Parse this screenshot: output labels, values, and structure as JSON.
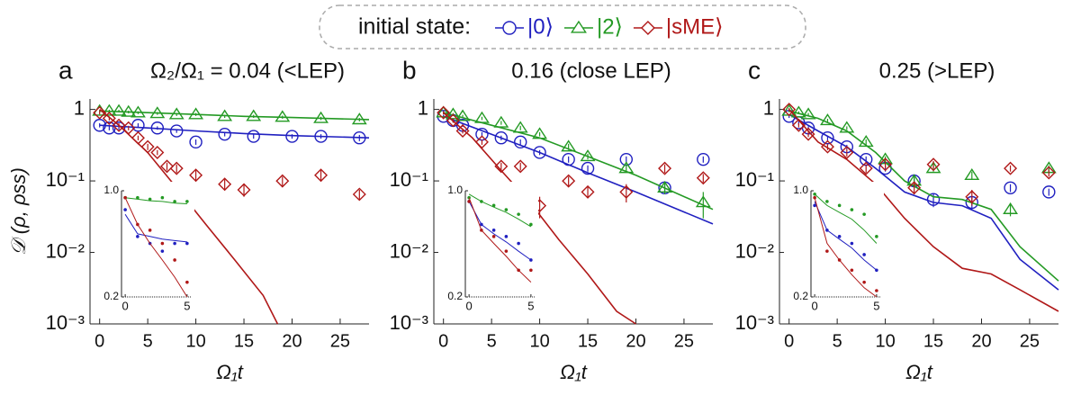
{
  "legend": {
    "title": "initial state:",
    "entries": [
      {
        "name": "|0⟩",
        "color": "#2020c0",
        "marker": "circle"
      },
      {
        "name": "|2⟩",
        "color": "#249a24",
        "marker": "triangle"
      },
      {
        "name": "|sME⟩",
        "color": "#b01818",
        "marker": "diamond"
      }
    ]
  },
  "chart_data": [
    {
      "type": "scatter",
      "panel_label": "a",
      "title": "Ω₂/Ω₁ = 0.04 (<LEP)",
      "y_label": "𝒟 (ρ, ρss)",
      "x_label": "Ω₁t",
      "log_y": true,
      "xlim": [
        -1,
        28
      ],
      "ylim": [
        0.001,
        1.4
      ],
      "xticks": [
        0,
        5,
        10,
        15,
        20,
        25
      ],
      "yticks": [
        1,
        {
          "value": 0.1,
          "label": "10⁻¹"
        },
        {
          "value": 0.01,
          "label": "10⁻²"
        },
        {
          "value": 0.001,
          "label": "10⁻³"
        }
      ],
      "series": [
        {
          "color": "#2020c0",
          "marker": "circle",
          "x": [
            0,
            1,
            2,
            4,
            6,
            8,
            10,
            13,
            16,
            20,
            23,
            27
          ],
          "values": [
            0.6,
            0.55,
            0.55,
            0.6,
            0.55,
            0.5,
            0.35,
            0.45,
            0.42,
            0.42,
            0.42,
            0.4
          ],
          "errors": [
            0.04,
            0.04,
            0.03,
            0.04,
            0.03,
            0.03,
            0.03,
            0.03,
            0.03,
            0.03,
            0.03,
            0.04
          ],
          "fit_x": [
            0,
            5,
            10,
            15,
            20,
            28
          ],
          "fit_values": [
            0.6,
            0.55,
            0.5,
            0.46,
            0.43,
            0.4
          ]
        },
        {
          "color": "#249a24",
          "marker": "triangle",
          "x": [
            0,
            1,
            2,
            3,
            4,
            6,
            8,
            10,
            13,
            16,
            19,
            23,
            27
          ],
          "values": [
            0.95,
            0.95,
            0.95,
            0.92,
            0.9,
            0.88,
            0.85,
            0.85,
            0.8,
            0.8,
            0.78,
            0.75,
            0.72
          ],
          "errors": [
            0.04,
            0.04,
            0.04,
            0.04,
            0.04,
            0.04,
            0.04,
            0.04,
            0.04,
            0.04,
            0.04,
            0.04,
            0.04
          ],
          "fit_x": [
            0,
            5,
            10,
            15,
            20,
            28
          ],
          "fit_values": [
            0.95,
            0.9,
            0.85,
            0.8,
            0.77,
            0.72
          ]
        },
        {
          "color": "#b01818",
          "marker": "diamond",
          "x": [
            0,
            1,
            2,
            3,
            4,
            5,
            6,
            7,
            8,
            10,
            13,
            15,
            19,
            23,
            27
          ],
          "values": [
            0.9,
            0.75,
            0.6,
            0.55,
            0.4,
            0.3,
            0.25,
            0.16,
            0.15,
            0.12,
            0.09,
            0.075,
            0.1,
            0.12,
            0.065
          ],
          "errors": [
            0.05,
            0.05,
            0.04,
            0.04,
            0.03,
            0.03,
            0.02,
            0.02,
            0.02,
            0.02,
            0.015,
            0.015,
            0.015,
            0.02,
            0.01
          ],
          "fit_x": [
            0,
            2,
            5,
            8,
            11,
            14,
            17,
            18.5
          ],
          "fit_values": [
            1,
            0.6,
            0.25,
            0.08,
            0.025,
            0.008,
            0.0025,
            0.001
          ]
        }
      ],
      "inset": {
        "xlim": [
          -0.3,
          5.3
        ],
        "ylim": [
          0.2,
          1.0
        ],
        "xticks": [
          0,
          5
        ],
        "yticks": [
          {
            "value": 1,
            "label": "1.0"
          },
          0.2
        ],
        "series": [
          {
            "color": "#2020c0",
            "x": [
              0,
              1,
              2,
              3,
              4,
              5
            ],
            "values": [
              0.75,
              0.5,
              0.45,
              0.4,
              0.45,
              0.45
            ],
            "fit_x": [
              0,
              1,
              2,
              3,
              4,
              5
            ],
            "fit_values": [
              0.7,
              0.52,
              0.5,
              0.48,
              0.47,
              0.46
            ]
          },
          {
            "color": "#249a24",
            "x": [
              0,
              1,
              2,
              3,
              4,
              5
            ],
            "values": [
              0.9,
              0.9,
              0.88,
              0.9,
              0.85,
              0.85
            ],
            "fit_x": [
              0,
              1,
              2,
              3,
              4,
              5
            ],
            "fit_values": [
              0.9,
              0.88,
              0.86,
              0.85,
              0.83,
              0.82
            ]
          },
          {
            "color": "#b01818",
            "x": [
              0,
              1,
              2,
              3,
              4,
              5
            ],
            "values": [
              0.9,
              0.6,
              0.55,
              0.45,
              0.35,
              0.25
            ],
            "fit_x": [
              0,
              1,
              2,
              3,
              4,
              5
            ],
            "fit_values": [
              0.9,
              0.6,
              0.45,
              0.35,
              0.27,
              0.2
            ]
          }
        ]
      }
    },
    {
      "type": "scatter",
      "panel_label": "b",
      "title": "0.16 (close LEP)",
      "x_label": "Ω₁t",
      "log_y": true,
      "xlim": [
        -1,
        28
      ],
      "ylim": [
        0.001,
        1.4
      ],
      "xticks": [
        0,
        5,
        10,
        15,
        20,
        25
      ],
      "yticks": [
        1,
        {
          "value": 0.1,
          "label": "10⁻¹"
        },
        {
          "value": 0.01,
          "label": "10⁻²"
        },
        {
          "value": 0.001,
          "label": "10⁻³"
        }
      ],
      "series": [
        {
          "color": "#2020c0",
          "marker": "circle",
          "x": [
            0,
            1,
            2,
            4,
            6,
            8,
            10,
            13,
            15,
            19,
            23,
            27
          ],
          "values": [
            0.8,
            0.7,
            0.6,
            0.45,
            0.4,
            0.35,
            0.25,
            0.2,
            0.15,
            0.2,
            0.08,
            0.2
          ],
          "errors": [
            0.04,
            0.04,
            0.03,
            0.03,
            0.03,
            0.03,
            0.02,
            0.02,
            0.015,
            0.02,
            0.01,
            0.02
          ],
          "fit_x": [
            0,
            5,
            10,
            15,
            20,
            28
          ],
          "fit_values": [
            0.8,
            0.45,
            0.25,
            0.13,
            0.07,
            0.025
          ]
        },
        {
          "color": "#249a24",
          "marker": "triangle",
          "x": [
            0,
            1,
            2,
            4,
            6,
            8,
            10,
            13,
            15,
            19,
            23,
            27
          ],
          "values": [
            0.9,
            0.85,
            0.8,
            0.75,
            0.65,
            0.55,
            0.45,
            0.3,
            0.22,
            0.15,
            0.08,
            0.05
          ],
          "errors": [
            0.04,
            0.04,
            0.04,
            0.04,
            0.04,
            0.04,
            0.03,
            0.03,
            0.02,
            0.02,
            0.015,
            0.02
          ],
          "fit_x": [
            0,
            5,
            10,
            15,
            20,
            28
          ],
          "fit_values": [
            0.9,
            0.6,
            0.4,
            0.22,
            0.12,
            0.04
          ]
        },
        {
          "color": "#b01818",
          "marker": "diamond",
          "x": [
            0,
            1,
            2,
            4,
            6,
            8,
            10,
            13,
            15,
            19,
            23,
            27
          ],
          "values": [
            0.9,
            0.7,
            0.5,
            0.35,
            0.16,
            0.16,
            0.045,
            0.1,
            0.07,
            0.07,
            0.15,
            0.11
          ],
          "errors": [
            0.05,
            0.05,
            0.04,
            0.03,
            0.02,
            0.02,
            0.015,
            0.015,
            0.012,
            0.02,
            0.02,
            0.015
          ],
          "fit_x": [
            0,
            3,
            6,
            9,
            12,
            15,
            18,
            20
          ],
          "fit_values": [
            0.9,
            0.4,
            0.14,
            0.05,
            0.015,
            0.005,
            0.0015,
            0.001
          ]
        }
      ],
      "inset": {
        "xlim": [
          -0.3,
          5.3
        ],
        "ylim": [
          0.2,
          1.0
        ],
        "xticks": [
          0,
          5
        ],
        "yticks": [
          {
            "value": 1,
            "label": "1.0"
          },
          0.2
        ],
        "series": [
          {
            "color": "#2020c0",
            "x": [
              0,
              1,
              2,
              3,
              4,
              5
            ],
            "values": [
              0.85,
              0.6,
              0.55,
              0.5,
              0.45,
              0.35
            ],
            "fit_x": [
              0,
              1,
              2,
              3,
              4,
              5
            ],
            "fit_values": [
              0.85,
              0.6,
              0.52,
              0.46,
              0.4,
              0.35
            ]
          },
          {
            "color": "#249a24",
            "x": [
              0,
              1,
              2,
              3,
              4,
              5
            ],
            "values": [
              0.9,
              0.85,
              0.8,
              0.75,
              0.7,
              0.6
            ],
            "fit_x": [
              0,
              1,
              2,
              3,
              4,
              5
            ],
            "fit_values": [
              0.95,
              0.85,
              0.78,
              0.72,
              0.65,
              0.58
            ]
          },
          {
            "color": "#b01818",
            "x": [
              0,
              1,
              2,
              3,
              4,
              5
            ],
            "values": [
              0.85,
              0.55,
              0.5,
              0.4,
              0.3,
              0.3
            ],
            "fit_x": [
              0,
              1,
              2,
              3,
              4,
              5
            ],
            "fit_values": [
              0.9,
              0.55,
              0.45,
              0.37,
              0.3,
              0.25
            ]
          }
        ]
      }
    },
    {
      "type": "scatter",
      "panel_label": "c",
      "title": "0.25 (>LEP)",
      "x_label": "Ω₁t",
      "log_y": true,
      "xlim": [
        -1,
        28
      ],
      "ylim": [
        0.001,
        1.4
      ],
      "xticks": [
        0,
        5,
        10,
        15,
        20,
        25
      ],
      "yticks": [
        1,
        {
          "value": 0.1,
          "label": "10⁻¹"
        },
        {
          "value": 0.01,
          "label": "10⁻²"
        },
        {
          "value": 0.001,
          "label": "10⁻³"
        }
      ],
      "series": [
        {
          "color": "#2020c0",
          "marker": "circle",
          "x": [
            0,
            1,
            2,
            4,
            6,
            8,
            10,
            13,
            15,
            19,
            23,
            27
          ],
          "values": [
            0.8,
            0.65,
            0.55,
            0.4,
            0.3,
            0.2,
            0.15,
            0.1,
            0.055,
            0.05,
            0.08,
            0.07
          ],
          "errors": [
            0.04,
            0.04,
            0.03,
            0.03,
            0.02,
            0.02,
            0.015,
            0.015,
            0.012,
            0.01,
            0.01,
            0.008
          ],
          "fit_x": [
            0,
            3,
            6,
            9,
            12,
            15,
            18,
            21,
            24,
            28
          ],
          "fit_values": [
            0.85,
            0.5,
            0.3,
            0.15,
            0.07,
            0.05,
            0.045,
            0.03,
            0.008,
            0.003
          ]
        },
        {
          "color": "#249a24",
          "marker": "triangle",
          "x": [
            0,
            1,
            2,
            4,
            6,
            8,
            10,
            13,
            15,
            19,
            23,
            27
          ],
          "values": [
            0.95,
            0.9,
            0.85,
            0.7,
            0.55,
            0.35,
            0.2,
            0.1,
            0.15,
            0.12,
            0.04,
            0.15
          ],
          "errors": [
            0.04,
            0.04,
            0.04,
            0.04,
            0.03,
            0.03,
            0.02,
            0.015,
            0.015,
            0.015,
            0.008,
            0.015
          ],
          "fit_x": [
            0,
            3,
            6,
            9,
            12,
            15,
            18,
            21,
            24,
            28
          ],
          "fit_values": [
            0.95,
            0.75,
            0.5,
            0.25,
            0.1,
            0.06,
            0.055,
            0.04,
            0.012,
            0.004
          ]
        },
        {
          "color": "#b01818",
          "marker": "diamond",
          "x": [
            0,
            1,
            2,
            4,
            6,
            8,
            10,
            13,
            15,
            19,
            23,
            27
          ],
          "values": [
            1.0,
            0.6,
            0.45,
            0.3,
            0.25,
            0.15,
            0.17,
            0.08,
            0.17,
            0.06,
            0.15,
            0.13
          ],
          "errors": [
            0.05,
            0.04,
            0.04,
            0.03,
            0.03,
            0.02,
            0.02,
            0.015,
            0.02,
            0.015,
            0.015,
            0.015
          ],
          "fit_x": [
            0,
            3,
            6,
            9,
            12,
            15,
            18,
            21,
            24,
            28
          ],
          "fit_values": [
            1,
            0.35,
            0.2,
            0.09,
            0.03,
            0.012,
            0.006,
            0.005,
            0.003,
            0.0015
          ]
        }
      ],
      "inset": {
        "xlim": [
          -0.3,
          5.3
        ],
        "ylim": [
          0.2,
          1.0
        ],
        "xticks": [
          0,
          5
        ],
        "yticks": [
          {
            "value": 1,
            "label": "1.0"
          },
          0.2
        ],
        "series": [
          {
            "color": "#2020c0",
            "x": [
              0,
              1,
              2,
              3,
              4,
              5
            ],
            "values": [
              0.8,
              0.55,
              0.5,
              0.45,
              0.38,
              0.3
            ],
            "fit_x": [
              0,
              1,
              2,
              3,
              4,
              5
            ],
            "fit_values": [
              0.85,
              0.55,
              0.48,
              0.42,
              0.35,
              0.3
            ]
          },
          {
            "color": "#249a24",
            "x": [
              0,
              1,
              2,
              3,
              4,
              5
            ],
            "values": [
              0.95,
              0.85,
              0.8,
              0.75,
              0.7,
              0.5
            ],
            "fit_x": [
              0,
              1,
              2,
              3,
              4,
              5
            ],
            "fit_values": [
              0.95,
              0.8,
              0.72,
              0.65,
              0.55,
              0.45
            ]
          },
          {
            "color": "#b01818",
            "x": [
              0,
              1,
              2,
              3,
              4,
              5
            ],
            "values": [
              0.9,
              0.4,
              0.35,
              0.3,
              0.25,
              0.22
            ],
            "fit_x": [
              0,
              1,
              2,
              3,
              4,
              5
            ],
            "fit_values": [
              0.9,
              0.45,
              0.35,
              0.28,
              0.23,
              0.2
            ]
          }
        ]
      }
    }
  ]
}
